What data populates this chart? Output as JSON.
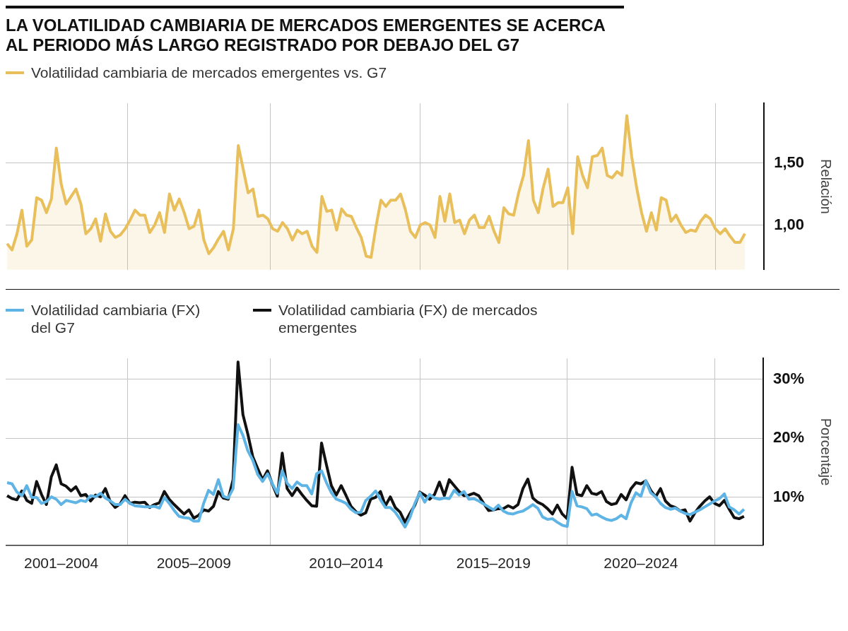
{
  "chart_data": [
    {
      "type": "area",
      "title": "LA VOLATILIDAD CAMBIARIA DE MERCADOS EMERGENTES SE ACERCA AL PERIODO MÁS LARGO REGISTRADO POR DEBAJO DEL G7",
      "ylabel": "Relación",
      "legend": "top left",
      "grid": true,
      "marker": "none",
      "tick_labels": "y",
      "categories": [
        null,
        null,
        null,
        null,
        null,
        null,
        null,
        null,
        null,
        null,
        null,
        null,
        null,
        null,
        null,
        null,
        null,
        null,
        null,
        null,
        null,
        null,
        null,
        null,
        null,
        null,
        null,
        null,
        null,
        null,
        null,
        null,
        null,
        null,
        null,
        null,
        null,
        null,
        null,
        null,
        null,
        null,
        null,
        null,
        null,
        null,
        null,
        null,
        null,
        null,
        null,
        null,
        null,
        null,
        null,
        null,
        null,
        null,
        null,
        null,
        null,
        null,
        null,
        null,
        null,
        null,
        null,
        null,
        null,
        null,
        null,
        null,
        null,
        null,
        null,
        null,
        null,
        null,
        null,
        null,
        null,
        null,
        null,
        null,
        null,
        null,
        null,
        null,
        null,
        null,
        null,
        null,
        null,
        null,
        null,
        null,
        null,
        null,
        null,
        null,
        null,
        null,
        null,
        null,
        null,
        null,
        null,
        null,
        null,
        null,
        null,
        null,
        null,
        null,
        null,
        null,
        null,
        null,
        null,
        null,
        null,
        null,
        null,
        null,
        null,
        null,
        null,
        null,
        null,
        null,
        null,
        null,
        null,
        null,
        null,
        null,
        null,
        null,
        null,
        null,
        null,
        null,
        null,
        null,
        null,
        null,
        null,
        null,
        null,
        null,
        null
      ],
      "ylim": [
        0.64,
        1.98
      ],
      "yticks": [
        {
          "value": 1,
          "label": "1,00"
        },
        {
          "value": 1.5,
          "label": "1,50"
        }
      ],
      "series": [
        {
          "name": "Volatilidad cambiaria de mercados emergentes vs. G7",
          "color": "#e8bf5a",
          "values": [
            0.85,
            0.8,
            0.93,
            1.12,
            0.83,
            0.88,
            1.22,
            1.2,
            1.1,
            1.21,
            1.62,
            1.33,
            1.17,
            1.23,
            1.29,
            1.17,
            0.93,
            0.97,
            1.05,
            0.87,
            1.09,
            0.95,
            0.9,
            0.92,
            0.97,
            1.04,
            1.12,
            1.08,
            1.08,
            0.94,
            1.0,
            1.1,
            0.94,
            1.25,
            1.12,
            1.21,
            1.1,
            0.97,
            0.99,
            1.12,
            0.88,
            0.77,
            0.82,
            0.89,
            0.95,
            0.8,
            0.97,
            1.64,
            1.45,
            1.26,
            1.29,
            1.07,
            1.08,
            1.05,
            0.97,
            0.95,
            1.02,
            0.97,
            0.88,
            0.96,
            0.93,
            0.95,
            0.83,
            0.78,
            1.23,
            1.11,
            1.12,
            0.96,
            1.13,
            1.08,
            1.07,
            0.98,
            0.9,
            0.75,
            0.74,
            0.99,
            1.2,
            1.15,
            1.2,
            1.2,
            1.25,
            1.12,
            0.95,
            0.9,
            1.0,
            1.02,
            1.0,
            0.9,
            1.23,
            1.03,
            1.25,
            1.02,
            1.04,
            0.93,
            1.04,
            1.08,
            0.98,
            0.98,
            1.07,
            0.95,
            0.86,
            1.14,
            1.09,
            1.08,
            1.26,
            1.4,
            1.68,
            1.2,
            1.1,
            1.3,
            1.45,
            1.15,
            1.18,
            1.18,
            1.3,
            0.93,
            1.55,
            1.4,
            1.3,
            1.55,
            1.56,
            1.62,
            1.4,
            1.38,
            1.43,
            1.4,
            1.88,
            1.55,
            1.3,
            1.1,
            0.95,
            1.1,
            0.96,
            1.22,
            1.2,
            1.03,
            1.08,
            1.0,
            0.94,
            0.96,
            0.95,
            1.03,
            1.08,
            1.05,
            0.97,
            0.93,
            0.97,
            0.91,
            0.86,
            0.86,
            0.93
          ]
        }
      ]
    },
    {
      "type": "line",
      "ylabel": "Porcentaje",
      "legend": "top left",
      "grid": true,
      "marker": "none",
      "categories": [
        null,
        null,
        null,
        null,
        null,
        null,
        null,
        null,
        null,
        null,
        null,
        "2001–2004",
        null,
        null,
        null,
        null,
        null,
        null,
        null,
        null,
        null,
        null,
        null,
        null,
        null,
        null,
        null,
        null,
        null,
        null,
        null,
        null,
        null,
        null,
        null,
        null,
        null,
        null,
        "2005–2009",
        null,
        null,
        null,
        null,
        null,
        null,
        null,
        null,
        null,
        null,
        null,
        null,
        null,
        null,
        null,
        null,
        null,
        null,
        null,
        null,
        null,
        null,
        null,
        null,
        null,
        null,
        null,
        null,
        null,
        null,
        "2010–2014",
        null,
        null,
        null,
        null,
        null,
        null,
        null,
        null,
        null,
        null,
        null,
        null,
        null,
        null,
        null,
        null,
        null,
        null,
        null,
        null,
        null,
        null,
        null,
        null,
        null,
        null,
        null,
        null,
        null,
        "2015–2019",
        null,
        null,
        null,
        null,
        null,
        null,
        null,
        null,
        null,
        null,
        null,
        null,
        null,
        null,
        null,
        null,
        null,
        null,
        null,
        null,
        null,
        null,
        null,
        null,
        null,
        null,
        null,
        null,
        null,
        "2020–2024",
        null,
        null,
        null,
        null,
        null,
        null,
        null,
        null,
        null,
        null,
        null,
        null,
        null,
        null,
        null,
        null,
        null,
        null,
        null,
        null,
        null
      ],
      "ylim": [
        1.9,
        33.5
      ],
      "yticks": [
        {
          "value": 10,
          "label": "10%"
        },
        {
          "value": 20,
          "label": "20%"
        },
        {
          "value": 30,
          "label": "30%"
        }
      ],
      "series": [
        {
          "name": "Volatilidad cambiaria (FX) del G7",
          "color": "#5eb4e5",
          "values": [
            12.5,
            12.3,
            10.9,
            10.3,
            12.0,
            10.0,
            10.0,
            9.0,
            9.3,
            10.1,
            9.7,
            8.8,
            9.5,
            9.3,
            9.1,
            9.5,
            9.3,
            10.3,
            10.1,
            10.7,
            9.9,
            9.4,
            8.8,
            8.8,
            9.7,
            9.0,
            8.6,
            8.5,
            8.4,
            8.4,
            8.5,
            8.2,
            10.0,
            9.0,
            7.8,
            6.8,
            6.6,
            6.5,
            6.0,
            6.0,
            9.0,
            11.2,
            10.5,
            13.0,
            10.2,
            9.9,
            11.5,
            22.3,
            20.5,
            17.9,
            16.3,
            13.9,
            12.7,
            14.0,
            12.3,
            10.7,
            14.5,
            12.4,
            11.5,
            12.6,
            12.0,
            12.0,
            10.6,
            14.0,
            14.5,
            12.5,
            10.8,
            9.7,
            9.4,
            9.0,
            8.0,
            7.4,
            7.5,
            9.5,
            10.2,
            11.1,
            9.6,
            8.3,
            8.3,
            7.5,
            6.3,
            5.0,
            6.6,
            9.0,
            10.8,
            9.2,
            10.5,
            9.9,
            9.7,
            9.9,
            9.8,
            11.2,
            10.4,
            11.0,
            9.7,
            9.8,
            9.4,
            8.9,
            8.4,
            7.9,
            8.7,
            7.7,
            7.3,
            7.2,
            7.5,
            7.7,
            8.2,
            8.8,
            8.2,
            6.7,
            6.3,
            6.4,
            5.8,
            5.3,
            5.1,
            11.0,
            8.6,
            8.4,
            8.1,
            7.0,
            7.2,
            6.7,
            6.3,
            6.1,
            6.4,
            7.0,
            6.4,
            9.1,
            10.8,
            10.2,
            12.8,
            10.8,
            10.1,
            9.0,
            8.3,
            8.0,
            8.2,
            7.7,
            7.3,
            7.1,
            7.5,
            7.9,
            8.4,
            8.9,
            9.4,
            9.8,
            10.6,
            8.4,
            7.9,
            7.2,
            8.0
          ]
        },
        {
          "name": "Volatilidad cambiaria (FX) de mercados emergentes",
          "color": "#111111",
          "values": [
            10.3,
            9.8,
            9.6,
            11.1,
            9.5,
            9.0,
            12.7,
            10.5,
            8.8,
            13.5,
            15.5,
            12.3,
            11.9,
            11.1,
            11.8,
            10.3,
            10.5,
            9.4,
            10.4,
            10.1,
            11.5,
            9.3,
            8.3,
            8.9,
            10.3,
            9.0,
            9.2,
            9.1,
            9.2,
            8.3,
            8.8,
            9.1,
            11.0,
            9.7,
            8.8,
            8.0,
            7.2,
            7.9,
            6.5,
            7.0,
            7.9,
            7.7,
            8.5,
            11.0,
            9.9,
            9.7,
            13.0,
            32.9,
            24.0,
            20.7,
            16.9,
            14.9,
            13.0,
            14.5,
            12.2,
            10.2,
            17.5,
            11.5,
            10.3,
            11.6,
            10.5,
            9.5,
            8.6,
            8.5,
            19.2,
            15.5,
            12.0,
            10.4,
            12.0,
            10.3,
            8.5,
            7.6,
            7.0,
            7.4,
            9.7,
            10.0,
            11.0,
            8.6,
            10.1,
            8.3,
            7.5,
            5.8,
            7.3,
            8.7,
            10.9,
            10.4,
            9.7,
            10.5,
            12.6,
            10.3,
            13.0,
            12.0,
            11.0,
            10.3,
            10.4,
            10.7,
            10.3,
            9.0,
            7.8,
            7.9,
            8.1,
            8.1,
            8.6,
            8.2,
            8.8,
            11.5,
            13.1,
            9.9,
            9.2,
            8.8,
            8.1,
            7.2,
            8.7,
            7.2,
            6.4,
            15.1,
            10.5,
            10.3,
            12.0,
            10.7,
            10.5,
            11.0,
            9.3,
            8.8,
            9.0,
            10.5,
            9.6,
            11.5,
            12.5,
            12.3,
            12.8,
            11.2,
            10.1,
            11.5,
            9.4,
            8.6,
            8.3,
            7.7,
            7.9,
            6.0,
            7.4,
            8.5,
            9.4,
            10.1,
            9.0,
            8.6,
            9.5,
            8.0,
            6.6,
            6.4,
            6.8
          ]
        }
      ]
    }
  ]
}
